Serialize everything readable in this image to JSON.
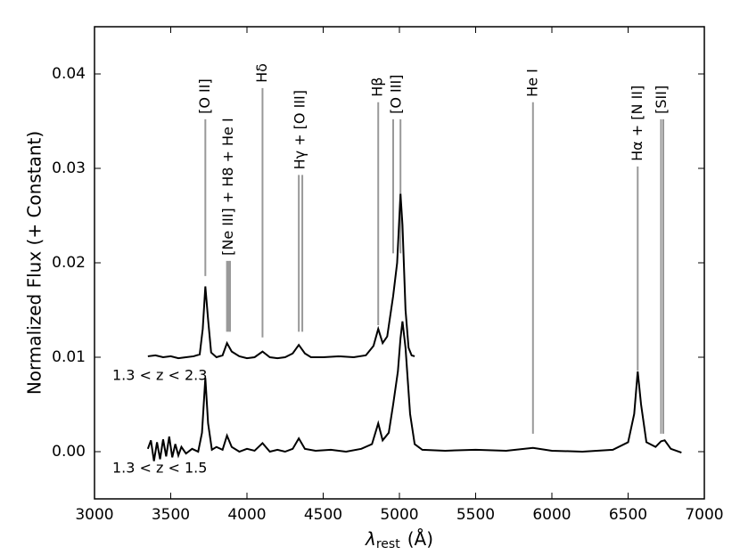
{
  "chart_data": {
    "type": "line",
    "y_label": "Normalized Flux (+ Constant)",
    "x_label_symbol": "λ",
    "x_label_sub": "rest",
    "x_label_unit": "(Å)",
    "xlim": [
      3000,
      7000
    ],
    "ylim": [
      -0.005,
      0.045
    ],
    "xticks": [
      3000,
      3500,
      4000,
      4500,
      5000,
      5500,
      6000,
      6500,
      7000
    ],
    "yticks": [
      {
        "value": 0,
        "label": "0.00"
      },
      0.01,
      0.02,
      0.03,
      0.04
    ],
    "series": [
      {
        "name": "1.3 < z < 2.3",
        "color": "#000000",
        "x": [
          3350,
          3400,
          3450,
          3500,
          3550,
          3600,
          3650,
          3690,
          3710,
          3727,
          3745,
          3765,
          3800,
          3840,
          3869,
          3900,
          3950,
          4000,
          4050,
          4102,
          4150,
          4200,
          4250,
          4300,
          4340,
          4380,
          4420,
          4500,
          4600,
          4700,
          4780,
          4830,
          4861,
          4890,
          4920,
          4959,
          4985,
          5007,
          5020,
          5040,
          5060,
          5080,
          5100
        ],
        "values": [
          0.0101,
          0.0102,
          0.01,
          0.0101,
          0.0099,
          0.01,
          0.0101,
          0.0103,
          0.013,
          0.0175,
          0.014,
          0.0105,
          0.01,
          0.0102,
          0.0115,
          0.0106,
          0.0101,
          0.0099,
          0.01,
          0.0106,
          0.01,
          0.0099,
          0.01,
          0.0104,
          0.0113,
          0.0104,
          0.01,
          0.01,
          0.0101,
          0.01,
          0.0102,
          0.0112,
          0.013,
          0.0115,
          0.0122,
          0.0165,
          0.02,
          0.0273,
          0.024,
          0.015,
          0.011,
          0.0102,
          0.0101
        ]
      },
      {
        "name": "1.3 < z < 1.5",
        "color": "#000000",
        "x": [
          3350,
          3370,
          3390,
          3410,
          3430,
          3450,
          3470,
          3490,
          3510,
          3530,
          3550,
          3570,
          3600,
          3640,
          3680,
          3705,
          3727,
          3745,
          3770,
          3800,
          3840,
          3869,
          3900,
          3950,
          4000,
          4050,
          4102,
          4150,
          4200,
          4250,
          4300,
          4340,
          4380,
          4450,
          4550,
          4650,
          4750,
          4820,
          4861,
          4890,
          4930,
          4959,
          4990,
          5007,
          5020,
          5040,
          5070,
          5100,
          5150,
          5300,
          5500,
          5700,
          5876,
          6000,
          6200,
          6400,
          6500,
          6540,
          6563,
          6585,
          6620,
          6680,
          6716,
          6740,
          6780,
          6850
        ],
        "values": [
          0.0003,
          0.0012,
          -0.001,
          0.001,
          -0.0008,
          0.0013,
          -0.0005,
          0.0016,
          -0.0006,
          0.0008,
          -0.0004,
          0.0005,
          -0.0002,
          0.0003,
          0.0,
          0.002,
          0.0078,
          0.003,
          0.0002,
          0.0005,
          0.0002,
          0.0017,
          0.0005,
          0.0,
          0.0003,
          0.0001,
          0.0009,
          0.0,
          0.0002,
          0.0,
          0.0003,
          0.0014,
          0.0003,
          0.0001,
          0.0002,
          0.0,
          0.0003,
          0.0008,
          0.003,
          0.0012,
          0.002,
          0.005,
          0.0085,
          0.012,
          0.0138,
          0.011,
          0.004,
          0.0008,
          0.0002,
          0.0001,
          0.0002,
          0.0001,
          0.0004,
          0.0001,
          0.0,
          0.0002,
          0.001,
          0.004,
          0.0085,
          0.005,
          0.001,
          0.0005,
          0.0011,
          0.0012,
          0.0003,
          -0.0001
        ]
      }
    ],
    "annotations": [
      {
        "label": "[O II]",
        "x": [
          3727
        ],
        "ymin": 0.0186,
        "ymax": 0.0352
      },
      {
        "label": "[Ne III] + H8  + He I",
        "x": [
          3869,
          3880,
          3889
        ],
        "ymin": 0.0127,
        "ymax": 0.0202
      },
      {
        "label": "Hδ",
        "x": [
          4102
        ],
        "ymin": 0.0121,
        "ymax": 0.0385
      },
      {
        "label": "Hγ + [O III]",
        "x": [
          4340,
          4363
        ],
        "ymin": 0.0127,
        "ymax": 0.0293
      },
      {
        "label": "Hβ",
        "x": [
          4861
        ],
        "ymin": 0.0134,
        "ymax": 0.037
      },
      {
        "label": "[O III]",
        "x": [
          4959,
          5007
        ],
        "ymin": 0.021,
        "ymax": 0.0352
      },
      {
        "label": "He I",
        "x": [
          5876
        ],
        "ymin": 0.0019,
        "ymax": 0.037
      },
      {
        "label": "Hα + [N II]",
        "x": [
          6563
        ],
        "ymin": 0.0086,
        "ymax": 0.0302
      },
      {
        "label": "[SII]",
        "x": [
          6716,
          6731
        ],
        "ymin": 0.0019,
        "ymax": 0.0352
      }
    ]
  }
}
